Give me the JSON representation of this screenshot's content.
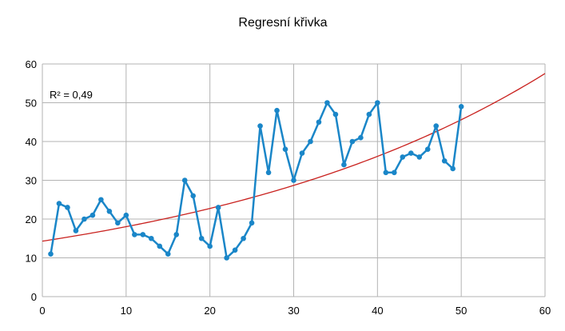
{
  "chart_data": {
    "type": "scatter",
    "title": "Regresní křivka",
    "annotation": "R² = 0,49",
    "xlim": [
      0,
      60
    ],
    "ylim": [
      0,
      60
    ],
    "x_ticks": [
      0,
      10,
      20,
      30,
      40,
      50,
      60
    ],
    "y_ticks": [
      0,
      10,
      20,
      30,
      40,
      50,
      60
    ],
    "grid": true,
    "series": [
      {
        "color": "#1a86c8",
        "x": [
          1,
          2,
          3,
          4,
          5,
          6,
          7,
          8,
          9,
          10,
          11,
          12,
          13,
          14,
          15,
          16,
          17,
          18,
          19,
          20,
          21,
          22,
          23,
          24,
          25,
          26,
          27,
          28,
          29,
          30,
          31,
          32,
          33,
          34,
          35,
          36,
          37,
          38,
          39,
          40,
          41,
          42,
          43,
          44,
          45,
          46,
          47,
          48,
          49,
          50
        ],
        "y": [
          11,
          24,
          23,
          17,
          20,
          21,
          25,
          22,
          19,
          21,
          16,
          16,
          15,
          13,
          11,
          16,
          30,
          26,
          15,
          13,
          23,
          10,
          12,
          15,
          19,
          44,
          32,
          48,
          38,
          30,
          37,
          40,
          45,
          50,
          47,
          34,
          40,
          41,
          47,
          50,
          32,
          32,
          36,
          37,
          36,
          38,
          44,
          35,
          33,
          49
        ]
      }
    ],
    "trendline": {
      "type": "exponential",
      "color": "#c9211e",
      "a": 14.3,
      "b": 0.0232,
      "x_range": [
        0,
        60
      ]
    }
  }
}
